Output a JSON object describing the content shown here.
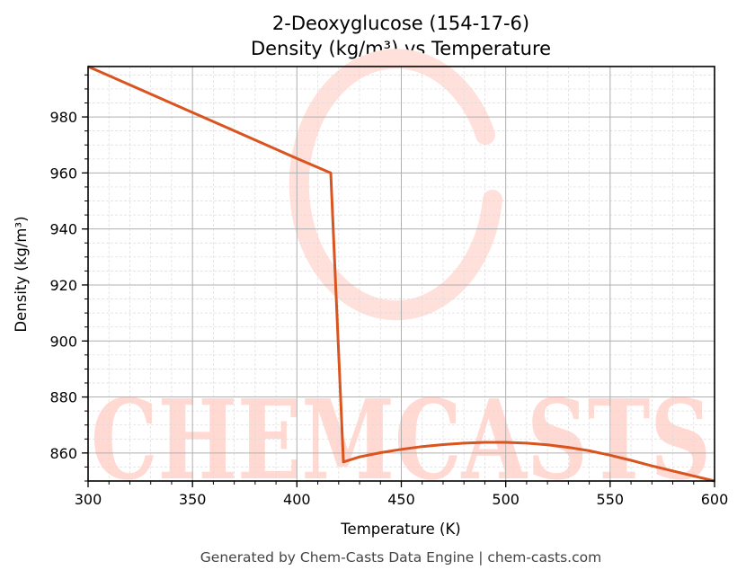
{
  "chart_data": {
    "type": "line",
    "title": "2-Deoxyglucose (154-17-6)",
    "subtitle": "Density (kg/m³) vs Temperature",
    "xlabel": "Temperature (K)",
    "ylabel": "Density (kg/m³)",
    "xlim": [
      300,
      600
    ],
    "ylim": [
      850,
      998
    ],
    "x_ticks": [
      300,
      350,
      400,
      450,
      500,
      550,
      600
    ],
    "y_ticks": [
      860,
      880,
      900,
      920,
      940,
      960,
      980
    ],
    "x_minor_step": 10,
    "y_minor_step": 5,
    "grid": true,
    "legend": null,
    "series": [
      {
        "name": "Density",
        "color": "#d9541e",
        "x": [
          300,
          325,
          350,
          375,
          400,
          416.2,
          422.3,
          430,
          440,
          450,
          460,
          470,
          480,
          490,
          500,
          510,
          520,
          530,
          540,
          550,
          560,
          570,
          580,
          590,
          600
        ],
        "y": [
          998.0,
          989.8,
          981.6,
          973.4,
          965.2,
          960.0,
          856.8,
          858.6,
          860.1,
          861.3,
          862.3,
          863.0,
          863.5,
          863.8,
          863.8,
          863.5,
          862.9,
          862.0,
          860.8,
          859.2,
          857.4,
          855.4,
          853.6,
          851.8,
          850.0
        ]
      }
    ]
  },
  "footer": "Generated by Chem-Casts Data Engine | chem-casts.com",
  "watermark": {
    "text": "CHEMCASTS",
    "color": "#ffd9d2"
  }
}
